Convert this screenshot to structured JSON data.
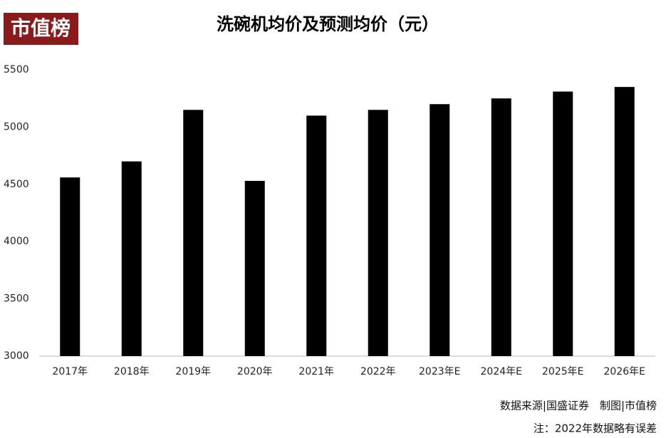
{
  "chart_data": {
    "type": "bar",
    "logo": "市值榜",
    "title": "洗碗机均价及预测均价（元）",
    "categories": [
      "2017年",
      "2018年",
      "2019年",
      "2020年",
      "2021年",
      "2022年",
      "2023年E",
      "2024年E",
      "2025年E",
      "2026年E"
    ],
    "values": [
      4560,
      4700,
      5150,
      4530,
      5100,
      5150,
      5200,
      5250,
      5310,
      5350
    ],
    "color": "#000000",
    "ylim": [
      3000,
      5500
    ],
    "yticks": [
      3000,
      3500,
      4000,
      4500,
      5000,
      5500
    ],
    "grid": false,
    "source": "数据来源|国盛证券　制图|市值榜",
    "note": "注：2022年数据略有误差"
  }
}
